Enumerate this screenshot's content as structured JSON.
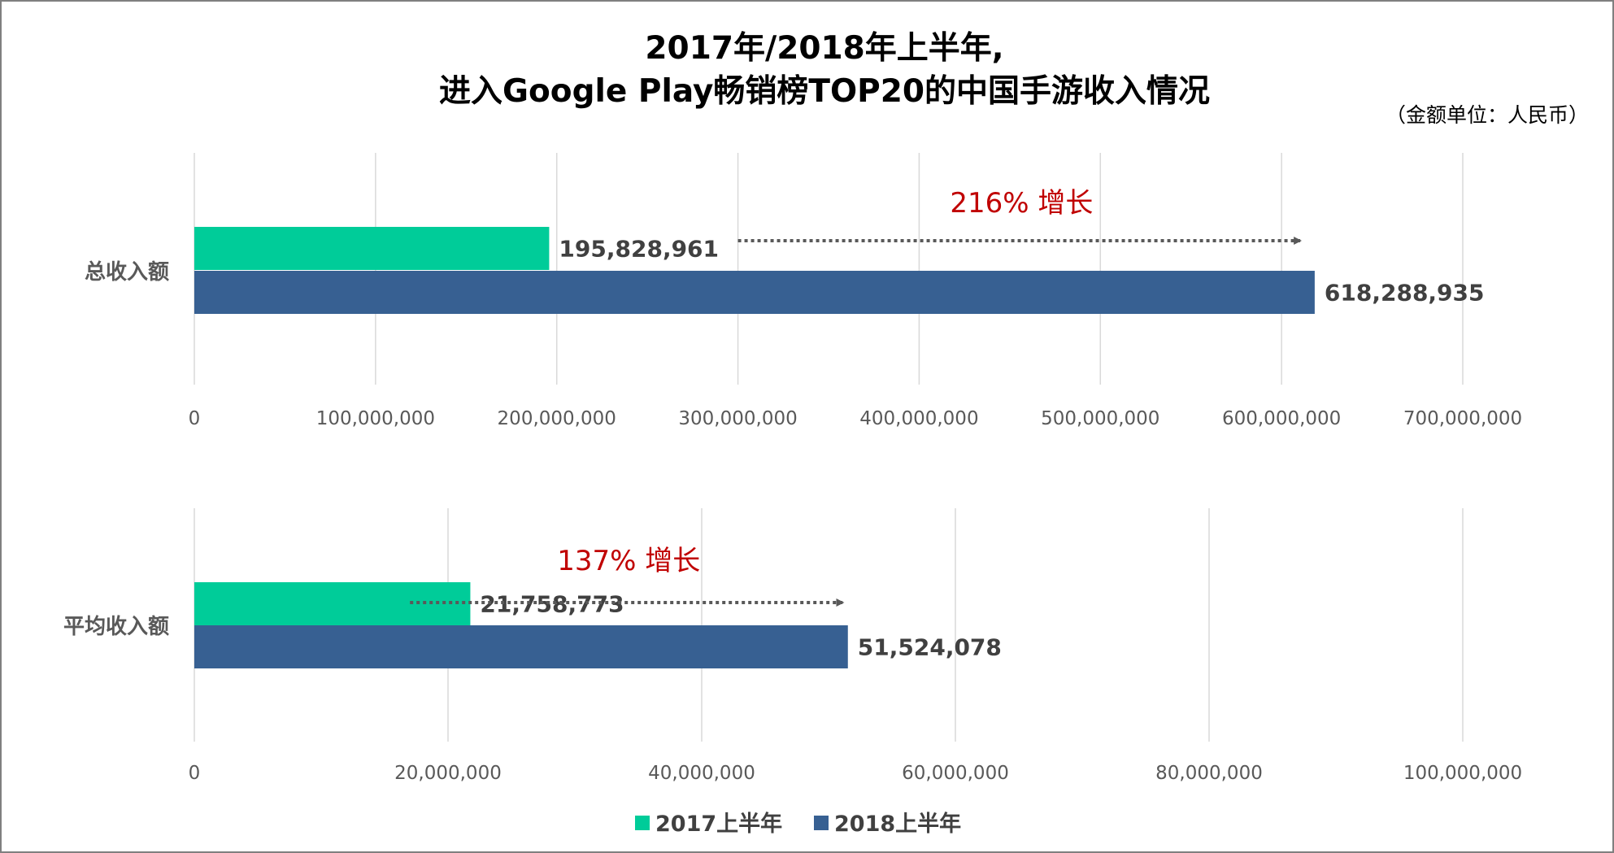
{
  "title_line1": "2017年/2018年上半年,",
  "title_line2": "进入Google Play畅销榜TOP20的中国手游收入情况",
  "unit_note": "（金额单位：人民币）",
  "colors": {
    "series_2017": "#00cc99",
    "series_2018": "#376092",
    "growth_text": "#c00000",
    "arrow": "#595959",
    "grid": "#d9d9d9"
  },
  "legend": [
    {
      "name": "2017上半年",
      "color": "#00cc99"
    },
    {
      "name": "2018上半年",
      "color": "#376092"
    }
  ],
  "chart_data": [
    {
      "type": "bar",
      "orientation": "horizontal",
      "categories": [
        "总收入额"
      ],
      "xlim": [
        0,
        700000000
      ],
      "ticks": [
        0,
        100000000,
        200000000,
        300000000,
        400000000,
        500000000,
        600000000,
        700000000
      ],
      "tick_labels": [
        "0",
        "100,000,000",
        "200,000,000",
        "300,000,000",
        "400,000,000",
        "500,000,000",
        "600,000,000",
        "700,000,000"
      ],
      "series": [
        {
          "name": "2017上半年",
          "values": [
            195828961
          ],
          "labels": [
            "195,828,961"
          ]
        },
        {
          "name": "2018上半年",
          "values": [
            618288935
          ],
          "labels": [
            "618,288,935"
          ]
        }
      ],
      "annotation": {
        "text": "216% 增长",
        "from": 300000000,
        "to": 613000000
      },
      "grid": true
    },
    {
      "type": "bar",
      "orientation": "horizontal",
      "categories": [
        "平均收入额"
      ],
      "xlim": [
        0,
        100000000
      ],
      "ticks": [
        0,
        20000000,
        40000000,
        60000000,
        80000000,
        100000000
      ],
      "tick_labels": [
        "0",
        "20,000,000",
        "40,000,000",
        "60,000,000",
        "80,000,000",
        "100,000,000"
      ],
      "series": [
        {
          "name": "2017上半年",
          "values": [
            21758773
          ],
          "labels": [
            "21,758,773"
          ]
        },
        {
          "name": "2018上半年",
          "values": [
            51524078
          ],
          "labels": [
            "51,524,078"
          ]
        }
      ],
      "annotation": {
        "text": "137% 增长",
        "from": 17000000,
        "to": 51500000
      },
      "grid": true
    }
  ]
}
